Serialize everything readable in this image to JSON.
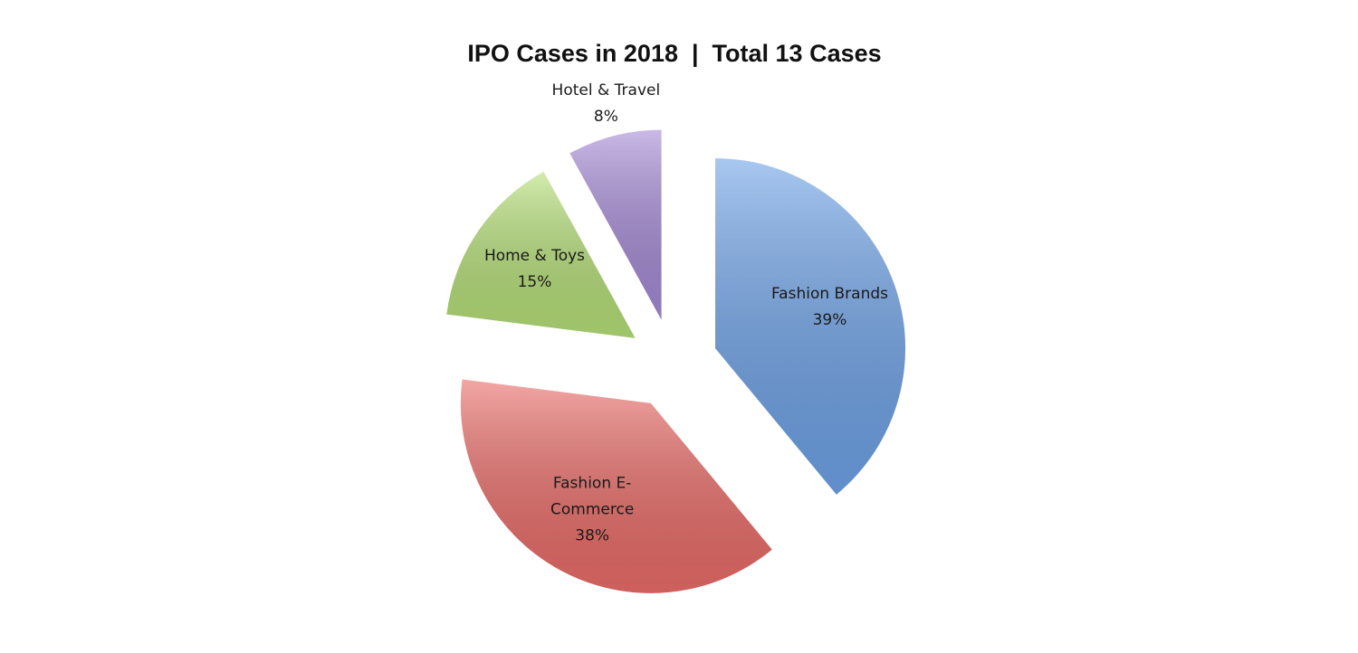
{
  "chart_data": {
    "type": "pie",
    "title": "IPO Cases in 2018  |  Total 13 Cases",
    "categories": [
      "Fashion Brands",
      "Fashion E-Commerce",
      "Home & Toys",
      "Hotel & Travel"
    ],
    "values": [
      39,
      38,
      15,
      8
    ],
    "value_labels": [
      "39%",
      "38%",
      "15%",
      "8%"
    ],
    "colors": [
      "#6fa3e8",
      "#ea6c68",
      "#b6e078",
      "#a68bd6"
    ],
    "exploded": true
  }
}
